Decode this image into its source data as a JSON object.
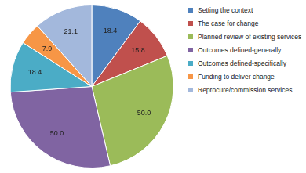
{
  "chart_data": {
    "type": "pie",
    "categories": [
      "Setting the context",
      "The case for change",
      "Planned review of existing services",
      "Outcomes defined-generally",
      "Outcomes defined-specifically",
      "Funding to deliver change",
      "Reprocure/commission services"
    ],
    "values": [
      18.4,
      15.8,
      50.0,
      50.0,
      18.4,
      7.9,
      21.1
    ],
    "value_labels": [
      "18.4",
      "15.8",
      "50.0",
      "50.0",
      "18.4",
      "7.9",
      "21.1"
    ],
    "colors": [
      "#4f81bd",
      "#c0504d",
      "#9bbb59",
      "#8064a2",
      "#4bacc6",
      "#f79646",
      "#a3b8dc"
    ],
    "data_labels": true,
    "legend": "right"
  }
}
